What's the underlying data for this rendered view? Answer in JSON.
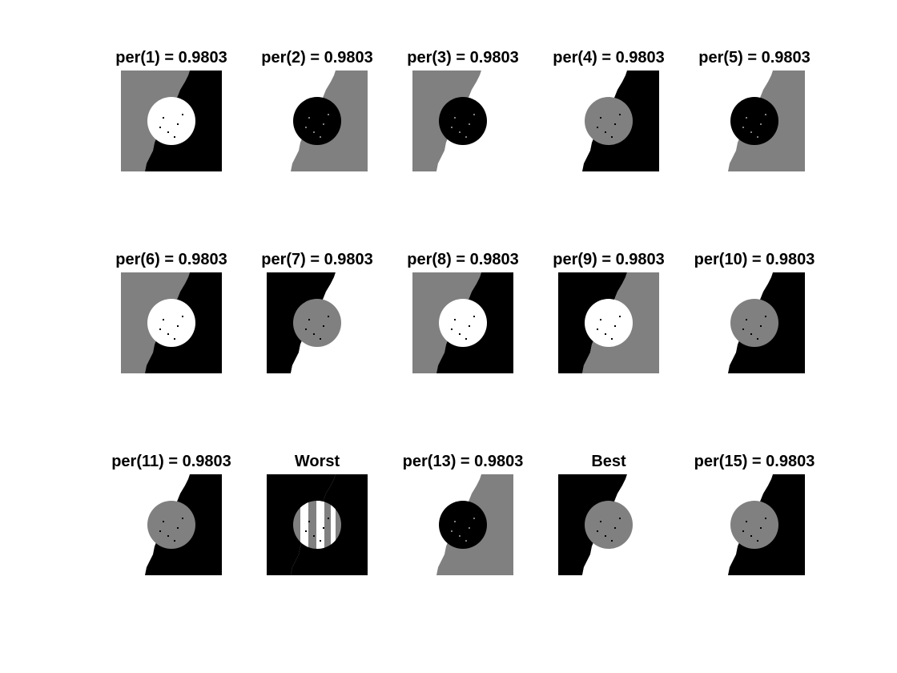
{
  "colors": {
    "black": "#000000",
    "gray": "#808080",
    "white": "#ffffff"
  },
  "panels": [
    {
      "title": "per(1) = 0.9803",
      "bg_left": "gray",
      "bg_right": "black",
      "disk": "white",
      "stripes": false
    },
    {
      "title": "per(2) = 0.9803",
      "bg_left": "white",
      "bg_right": "gray",
      "disk": "black",
      "stripes": false
    },
    {
      "title": "per(3) = 0.9803",
      "bg_left": "gray",
      "bg_right": "white",
      "disk": "black",
      "stripes": false
    },
    {
      "title": "per(4) = 0.9803",
      "bg_left": "white",
      "bg_right": "black",
      "disk": "gray",
      "stripes": false
    },
    {
      "title": "per(5) = 0.9803",
      "bg_left": "white",
      "bg_right": "gray",
      "disk": "black",
      "stripes": false
    },
    {
      "title": "per(6) = 0.9803",
      "bg_left": "gray",
      "bg_right": "black",
      "disk": "white",
      "stripes": false
    },
    {
      "title": "per(7) = 0.9803",
      "bg_left": "black",
      "bg_right": "white",
      "disk": "gray",
      "stripes": false
    },
    {
      "title": "per(8) = 0.9803",
      "bg_left": "gray",
      "bg_right": "black",
      "disk": "white",
      "stripes": false
    },
    {
      "title": "per(9) = 0.9803",
      "bg_left": "black",
      "bg_right": "gray",
      "disk": "white",
      "stripes": false
    },
    {
      "title": "per(10) = 0.9803",
      "bg_left": "white",
      "bg_right": "black",
      "disk": "gray",
      "stripes": false
    },
    {
      "title": "per(11) = 0.9803",
      "bg_left": "white",
      "bg_right": "black",
      "disk": "gray",
      "stripes": false
    },
    {
      "title": "Worst",
      "bg_left": "black",
      "bg_right": "black",
      "disk": "gray",
      "stripes": true
    },
    {
      "title": "per(13) = 0.9803",
      "bg_left": "white",
      "bg_right": "gray",
      "disk": "black",
      "stripes": false
    },
    {
      "title": "Best",
      "bg_left": "black",
      "bg_right": "white",
      "disk": "gray",
      "stripes": false
    },
    {
      "title": "per(15) = 0.9803",
      "bg_left": "white",
      "bg_right": "black",
      "disk": "gray",
      "stripes": false
    }
  ]
}
